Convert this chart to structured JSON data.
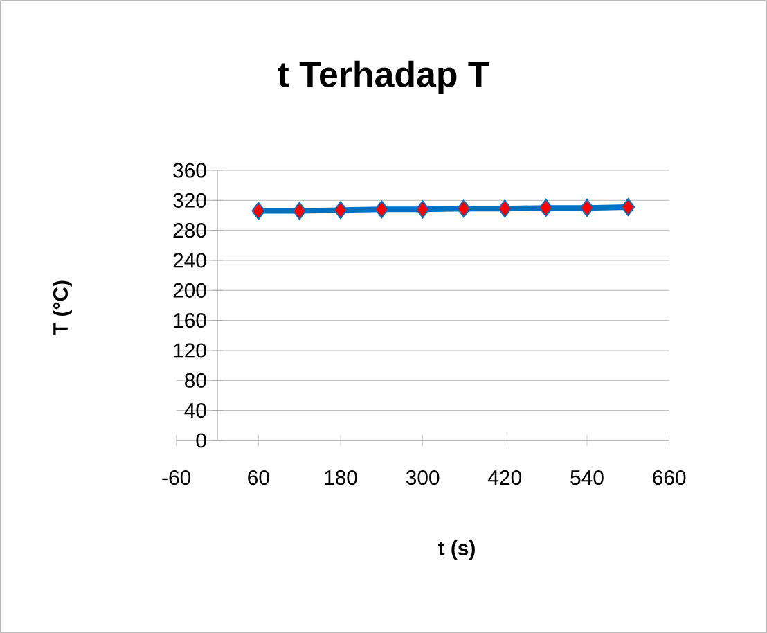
{
  "chart_data": {
    "type": "line",
    "title": "t Terhadap T",
    "xlabel": "t (s)",
    "ylabel": "T (°C)",
    "x": [
      60,
      120,
      180,
      240,
      300,
      360,
      420,
      480,
      540,
      600
    ],
    "series": [
      {
        "color": "#0070c0",
        "colors": [
          "#ff0000",
          "#ff0000",
          "#ff0000",
          "#ff0000",
          "#ff0000",
          "#ff0000",
          "#ff0000",
          "#ff0000",
          "#ff0000",
          "#ff0000"
        ],
        "values": [
          306,
          306,
          307,
          308,
          308,
          309,
          309,
          310,
          310,
          311
        ]
      }
    ],
    "xlim": [
      -60,
      660
    ],
    "xticks": [
      -60,
      60,
      180,
      300,
      420,
      540,
      660
    ],
    "ylim": [
      0,
      360
    ],
    "yticks": [
      0,
      40,
      80,
      120,
      160,
      200,
      240,
      280,
      320,
      360
    ],
    "grid": "y",
    "marker": "diamond",
    "line_style": "solid"
  }
}
